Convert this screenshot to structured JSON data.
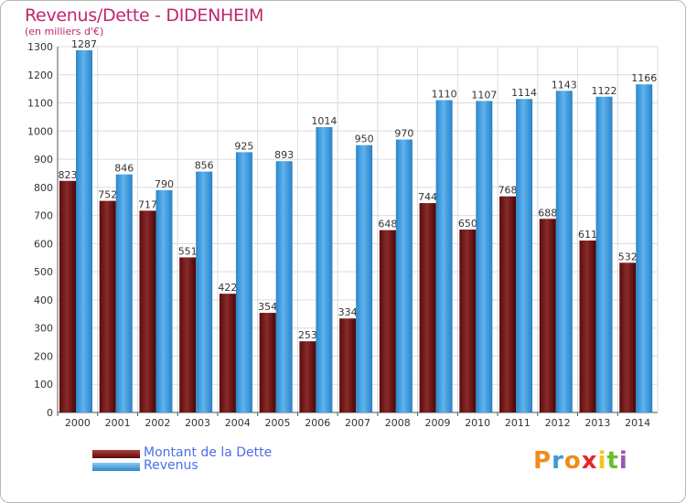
{
  "header": {
    "title": "Revenus/Dette - DIDENHEIM",
    "subtitle": "(en milliers d'€)"
  },
  "colors": {
    "dette": "#6e1414",
    "revenus": "#3e9ee0",
    "grid": "#dcdcdc",
    "title": "#c0266e",
    "legend_text": "#4c6ee8"
  },
  "legend": [
    {
      "label": "Montant de la Dette",
      "color": "#6e1414"
    },
    {
      "label": "Revenus",
      "color": "#3e9ee0"
    }
  ],
  "logo": {
    "letters": [
      "P",
      "r",
      "o",
      "x",
      "i",
      "t",
      "i"
    ],
    "colors": [
      "#f08c1c",
      "#3d9ad6",
      "#f08c1c",
      "#e8262a",
      "#f4c418",
      "#6cbf2c",
      "#9a55b8"
    ]
  },
  "chart_data": {
    "type": "bar",
    "title": "Revenus/Dette - DIDENHEIM",
    "subtitle": "(en milliers d'€)",
    "categories": [
      "2000",
      "2001",
      "2002",
      "2003",
      "2004",
      "2005",
      "2006",
      "2007",
      "2008",
      "2009",
      "2010",
      "2011",
      "2012",
      "2013",
      "2014"
    ],
    "series": [
      {
        "name": "Montant de la Dette",
        "values": [
          823,
          752,
          717,
          551,
          422,
          354,
          253,
          334,
          648,
          744,
          650,
          768,
          688,
          611,
          532
        ]
      },
      {
        "name": "Revenus",
        "values": [
          1287,
          846,
          790,
          856,
          925,
          893,
          1014,
          950,
          970,
          1110,
          1107,
          1114,
          1143,
          1122,
          1166
        ]
      }
    ],
    "ylim": [
      0,
      1300
    ],
    "yticks": [
      0,
      100,
      200,
      300,
      400,
      500,
      600,
      700,
      800,
      900,
      1000,
      1100,
      1200,
      1300
    ],
    "grid": true,
    "legend_position": "bottom-left"
  }
}
